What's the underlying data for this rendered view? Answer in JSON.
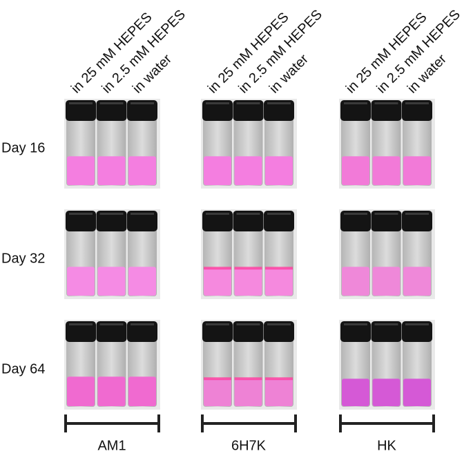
{
  "groups": [
    {
      "label": "AM1",
      "vials": [
        "in 25 mM HEPES",
        "in 2.5 mM HEPES",
        "in water"
      ]
    },
    {
      "label": "6H7K",
      "vials": [
        "in 25 mM HEPES",
        "in 2.5 mM HEPES",
        "in water"
      ]
    },
    {
      "label": "HK",
      "vials": [
        "in 25 mM HEPES",
        "in 2.5 mM HEPES",
        "in water"
      ]
    }
  ],
  "rows": [
    "Day 16",
    "Day 32",
    "Day 64"
  ]
}
